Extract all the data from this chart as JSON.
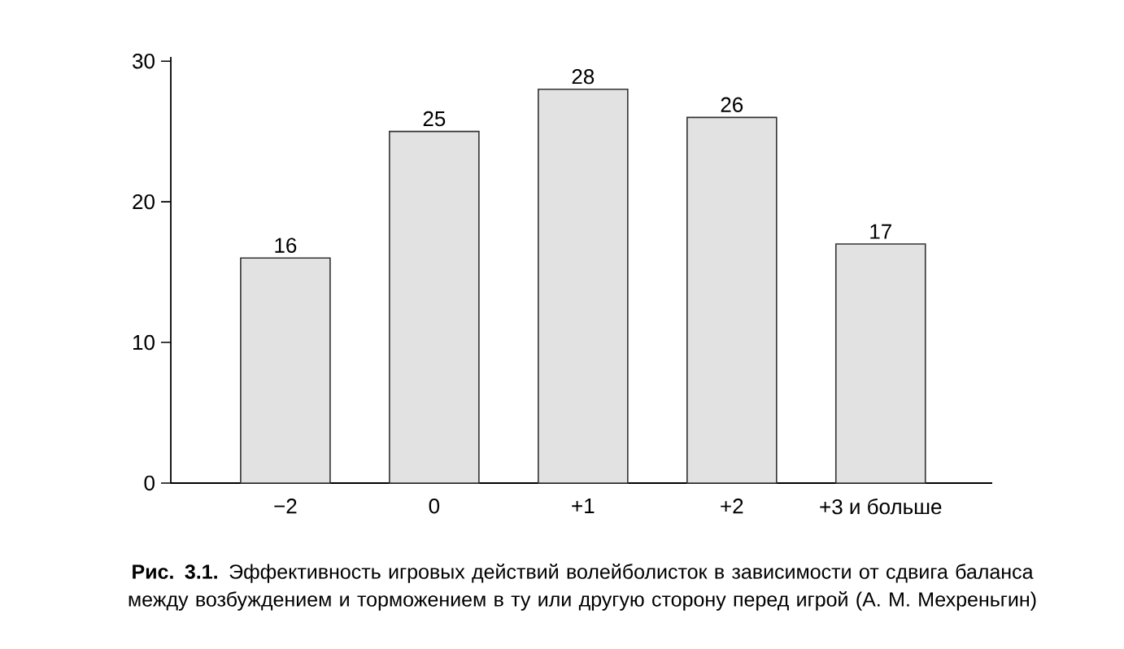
{
  "chart_data": {
    "type": "bar",
    "categories": [
      "−2",
      "0",
      "+1",
      "+2",
      "+3 и больше"
    ],
    "values": [
      16,
      25,
      28,
      26,
      17
    ],
    "color": "#e2e2e2",
    "ylim": [
      0,
      30
    ],
    "yticks": [
      0,
      10,
      20,
      30
    ],
    "data_labels": true,
    "annotations": [
      "**Рис. 3.1.** Эффективность игровых действий волейболисток в зависимости от сдвига баланса между возбуждением и торможением в ту или другую сторону перед игрой (А. М. Мехреньгин)"
    ]
  }
}
